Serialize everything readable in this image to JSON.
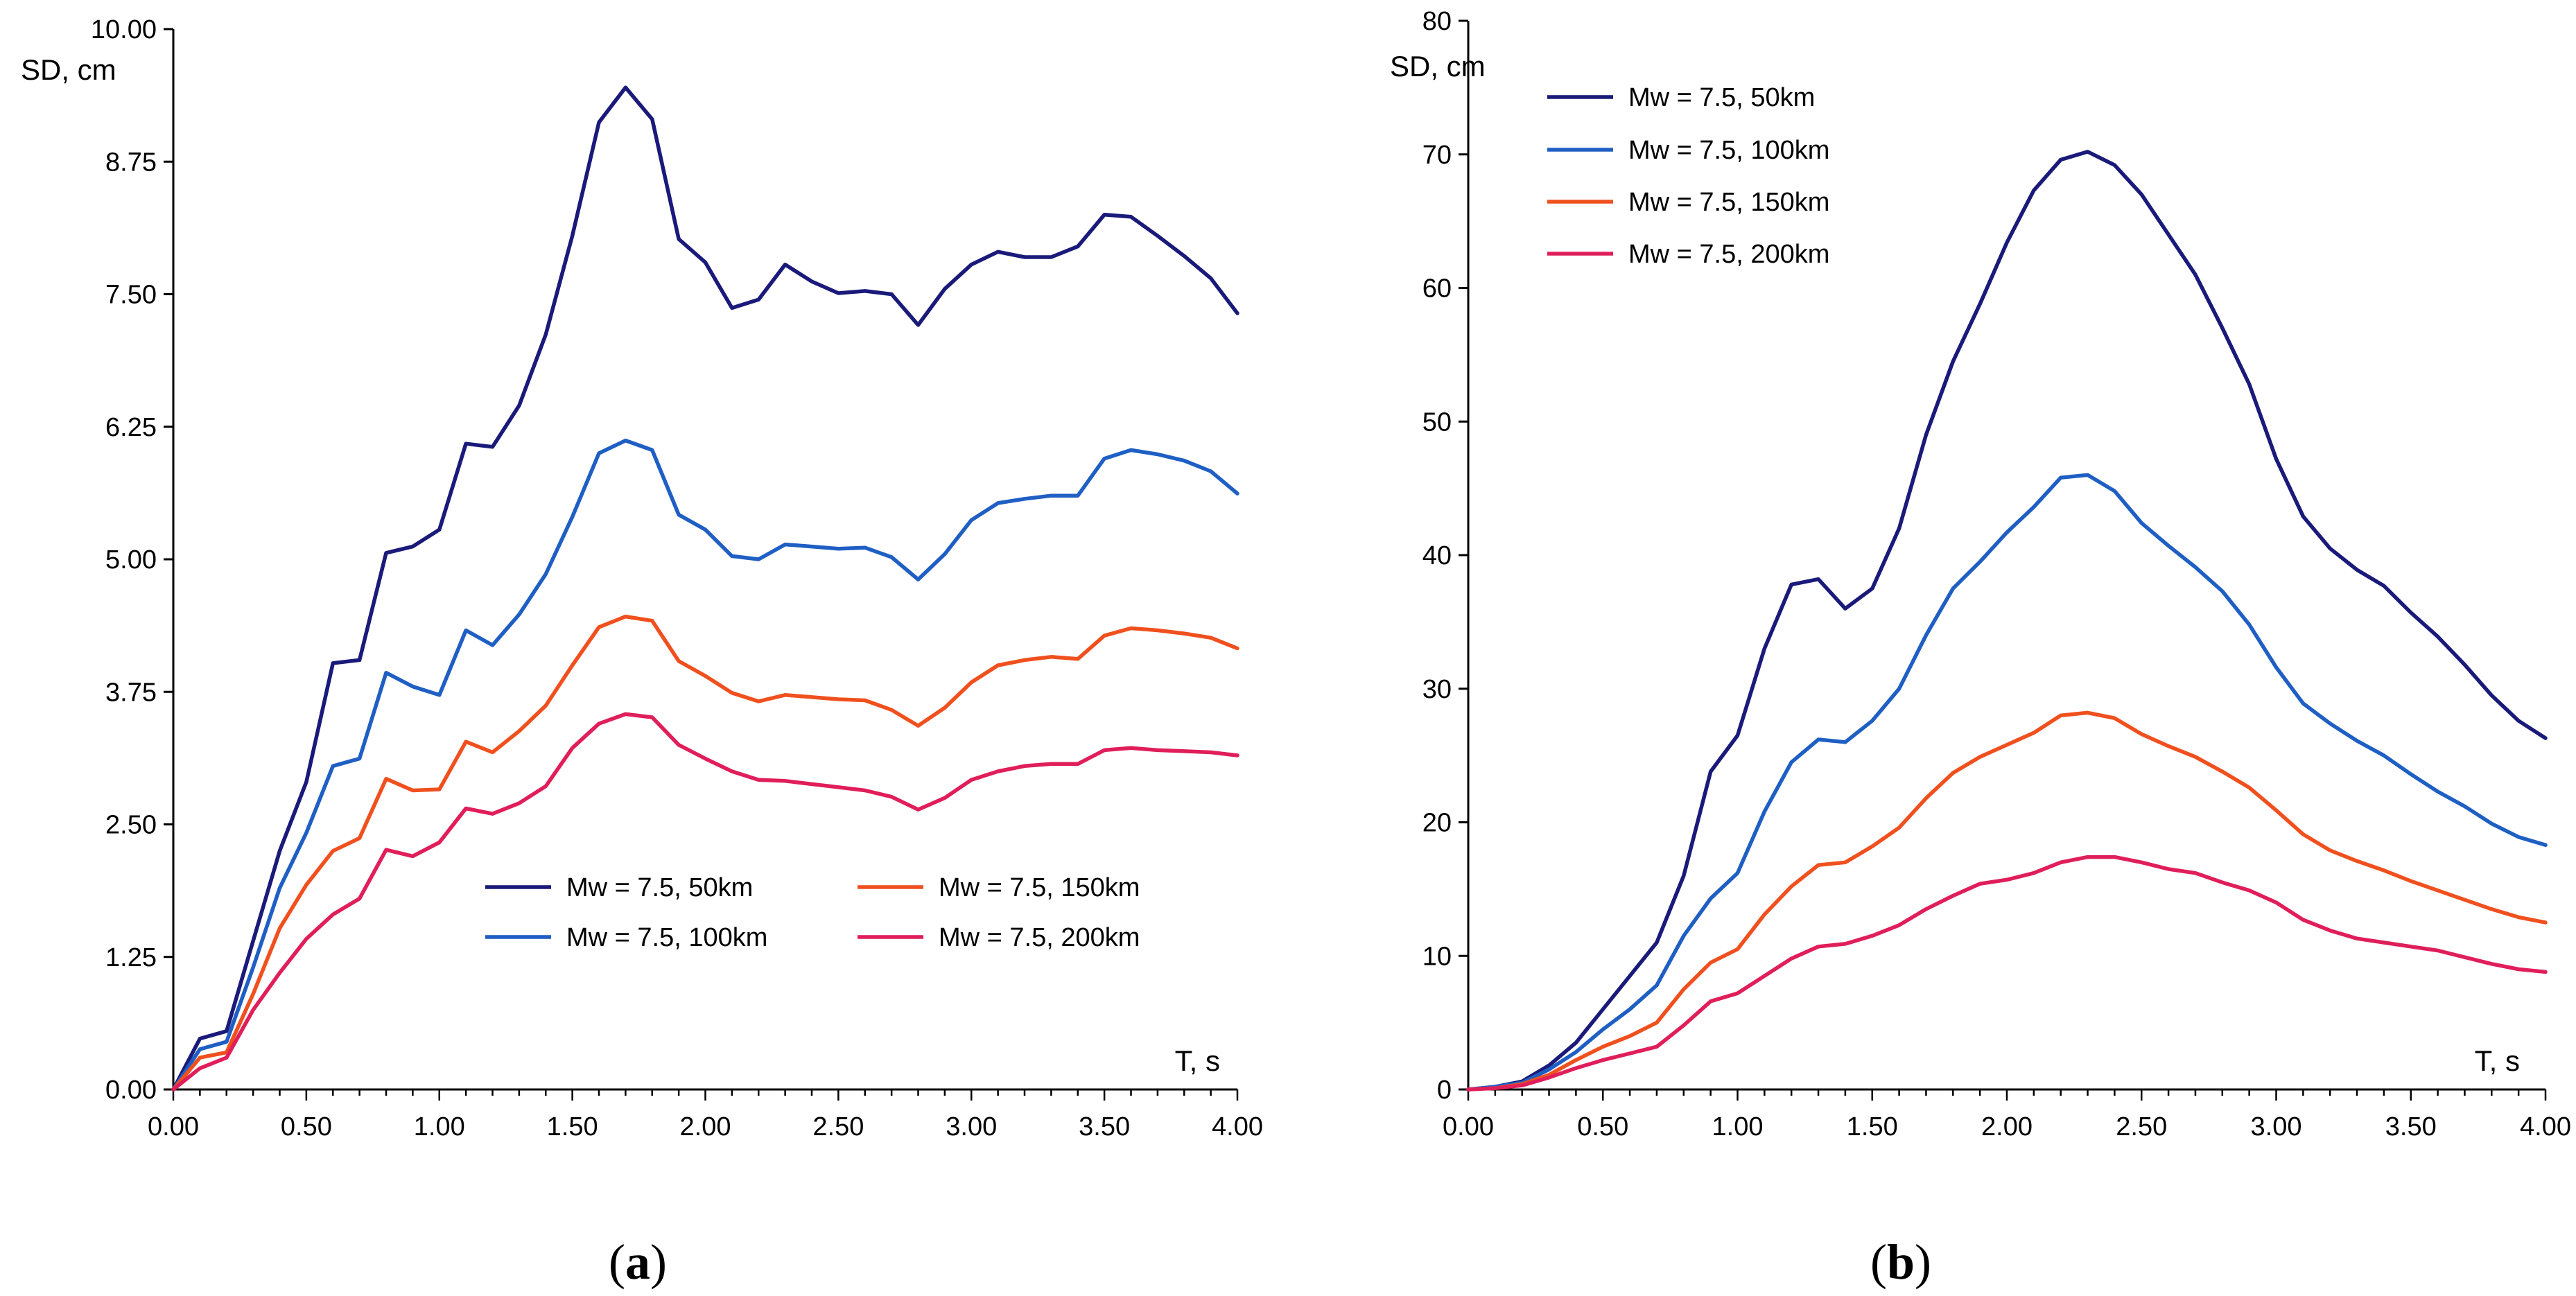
{
  "colors": {
    "50km": "#1a1a7a",
    "100km": "#1f5fc4",
    "150km": "#f0501e",
    "200km": "#e01e5a",
    "axis": "#000000"
  },
  "chart_data": [
    {
      "type": "line",
      "panel_label": "a",
      "xlabel": "T, s",
      "ylabel": "SD, cm",
      "xlim": [
        0,
        4
      ],
      "ylim": [
        0,
        10
      ],
      "xticks": [
        "0.00",
        "0.50",
        "1.00",
        "1.50",
        "2.00",
        "2.50",
        "3.00",
        "3.50",
        "4.00"
      ],
      "yticks": [
        "0.00",
        "1.25",
        "2.50",
        "3.75",
        "5.00",
        "6.25",
        "7.50",
        "8.75",
        "10.00"
      ],
      "legend_layout": "2x2",
      "x": [
        0.0,
        0.1,
        0.2,
        0.3,
        0.4,
        0.5,
        0.6,
        0.7,
        0.8,
        0.9,
        1.0,
        1.1,
        1.2,
        1.3,
        1.4,
        1.5,
        1.6,
        1.7,
        1.8,
        1.9,
        2.0,
        2.1,
        2.2,
        2.3,
        2.4,
        2.5,
        2.6,
        2.7,
        2.8,
        2.9,
        3.0,
        3.1,
        3.2,
        3.3,
        3.4,
        3.5,
        3.6,
        3.7,
        3.8,
        3.9,
        4.0
      ],
      "series": [
        {
          "name": "Mw = 7.5, 50km",
          "color_key": "50km",
          "values": [
            0.0,
            0.48,
            0.55,
            1.4,
            2.25,
            2.9,
            4.02,
            4.05,
            5.06,
            5.12,
            5.28,
            6.09,
            6.06,
            6.45,
            7.12,
            8.05,
            9.12,
            9.45,
            9.15,
            8.02,
            7.8,
            7.37,
            7.45,
            7.78,
            7.62,
            7.51,
            7.53,
            7.5,
            7.21,
            7.55,
            7.78,
            7.9,
            7.85,
            7.85,
            7.95,
            8.25,
            8.23,
            8.05,
            7.86,
            7.65,
            7.32
          ]
        },
        {
          "name": "Mw = 7.5, 100km",
          "color_key": "100km",
          "values": [
            0.0,
            0.38,
            0.45,
            1.15,
            1.9,
            2.42,
            3.05,
            3.12,
            3.93,
            3.8,
            3.72,
            4.33,
            4.19,
            4.48,
            4.86,
            5.4,
            6.0,
            6.12,
            6.03,
            5.42,
            5.28,
            5.03,
            5.0,
            5.14,
            5.12,
            5.1,
            5.11,
            5.02,
            4.81,
            5.05,
            5.37,
            5.53,
            5.57,
            5.6,
            5.6,
            5.95,
            6.03,
            5.99,
            5.93,
            5.83,
            5.62
          ]
        },
        {
          "name": "Mw = 7.5, 150km",
          "color_key": "150km",
          "values": [
            0.0,
            0.3,
            0.35,
            0.9,
            1.52,
            1.93,
            2.25,
            2.37,
            2.93,
            2.82,
            2.83,
            3.28,
            3.18,
            3.38,
            3.62,
            4.0,
            4.36,
            4.46,
            4.42,
            4.04,
            3.9,
            3.74,
            3.66,
            3.72,
            3.7,
            3.68,
            3.67,
            3.58,
            3.43,
            3.6,
            3.84,
            4.0,
            4.05,
            4.08,
            4.06,
            4.28,
            4.35,
            4.33,
            4.3,
            4.26,
            4.16
          ]
        },
        {
          "name": "Mw = 7.5, 200km",
          "color_key": "200km",
          "values": [
            0.0,
            0.2,
            0.3,
            0.75,
            1.1,
            1.42,
            1.65,
            1.8,
            2.26,
            2.2,
            2.33,
            2.65,
            2.6,
            2.7,
            2.86,
            3.22,
            3.45,
            3.54,
            3.51,
            3.25,
            3.12,
            3.0,
            2.92,
            2.91,
            2.88,
            2.85,
            2.82,
            2.76,
            2.64,
            2.75,
            2.92,
            3.0,
            3.05,
            3.07,
            3.07,
            3.2,
            3.22,
            3.2,
            3.19,
            3.18,
            3.15
          ]
        }
      ]
    },
    {
      "type": "line",
      "panel_label": "b",
      "xlabel": "T, s",
      "ylabel": "SD, cm",
      "xlim": [
        0,
        4
      ],
      "ylim": [
        0,
        80
      ],
      "xticks": [
        "0.00",
        "0.50",
        "1.00",
        "1.50",
        "2.00",
        "2.50",
        "3.00",
        "3.50",
        "4.00"
      ],
      "yticks": [
        "0",
        "10",
        "20",
        "30",
        "40",
        "50",
        "60",
        "70",
        "80"
      ],
      "legend_layout": "vertical",
      "x": [
        0.0,
        0.1,
        0.2,
        0.3,
        0.4,
        0.5,
        0.6,
        0.7,
        0.8,
        0.9,
        1.0,
        1.1,
        1.2,
        1.3,
        1.4,
        1.5,
        1.6,
        1.7,
        1.8,
        1.9,
        2.0,
        2.1,
        2.2,
        2.3,
        2.4,
        2.5,
        2.6,
        2.7,
        2.8,
        2.9,
        3.0,
        3.1,
        3.2,
        3.3,
        3.4,
        3.5,
        3.6,
        3.7,
        3.8,
        3.9,
        4.0
      ],
      "series": [
        {
          "name": "Mw = 7.5, 50km",
          "color_key": "50km",
          "values": [
            0.0,
            0.2,
            0.6,
            1.8,
            3.5,
            6.0,
            8.5,
            11.0,
            16.0,
            23.8,
            26.5,
            33.0,
            37.8,
            38.2,
            36.0,
            37.5,
            42.0,
            49.0,
            54.5,
            58.8,
            63.4,
            67.3,
            69.6,
            70.2,
            69.2,
            67.0,
            64.0,
            61.0,
            57.0,
            52.8,
            47.2,
            42.9,
            40.5,
            38.9,
            37.7,
            35.7,
            33.9,
            31.8,
            29.5,
            27.6,
            26.3
          ]
        },
        {
          "name": "Mw = 7.5, 100km",
          "color_key": "100km",
          "values": [
            0.0,
            0.2,
            0.5,
            1.5,
            2.8,
            4.5,
            6.0,
            7.8,
            11.5,
            14.3,
            16.2,
            20.8,
            24.5,
            26.2,
            26.0,
            27.6,
            30.0,
            34.0,
            37.5,
            39.5,
            41.7,
            43.6,
            45.8,
            46.0,
            44.8,
            42.4,
            40.7,
            39.1,
            37.3,
            34.8,
            31.6,
            28.9,
            27.4,
            26.1,
            25.0,
            23.6,
            22.3,
            21.2,
            19.9,
            18.9,
            18.3
          ]
        },
        {
          "name": "Mw = 7.5, 150km",
          "color_key": "150km",
          "values": [
            0.0,
            0.1,
            0.4,
            1.1,
            2.2,
            3.2,
            4.0,
            5.0,
            7.5,
            9.5,
            10.5,
            13.1,
            15.2,
            16.8,
            17.0,
            18.2,
            19.6,
            21.8,
            23.7,
            24.9,
            25.8,
            26.7,
            28.0,
            28.2,
            27.8,
            26.6,
            25.7,
            24.9,
            23.8,
            22.6,
            20.9,
            19.1,
            17.9,
            17.1,
            16.4,
            15.6,
            14.9,
            14.2,
            13.5,
            12.9,
            12.5
          ]
        },
        {
          "name": "Mw = 7.5, 200km",
          "color_key": "200km",
          "values": [
            0.0,
            0.1,
            0.3,
            0.9,
            1.6,
            2.2,
            2.7,
            3.2,
            4.8,
            6.6,
            7.2,
            8.5,
            9.8,
            10.7,
            10.9,
            11.5,
            12.3,
            13.5,
            14.5,
            15.4,
            15.7,
            16.2,
            17.0,
            17.4,
            17.4,
            17.0,
            16.5,
            16.2,
            15.5,
            14.9,
            14.0,
            12.7,
            11.9,
            11.3,
            11.0,
            10.7,
            10.4,
            9.9,
            9.4,
            9.0,
            8.8
          ]
        }
      ]
    }
  ]
}
